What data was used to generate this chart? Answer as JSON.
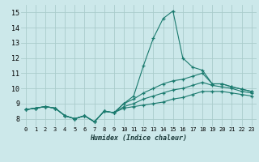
{
  "xlabel": "Humidex (Indice chaleur)",
  "xlim": [
    -0.5,
    23.5
  ],
  "ylim": [
    7.5,
    15.5
  ],
  "xticks": [
    0,
    1,
    2,
    3,
    4,
    5,
    6,
    7,
    8,
    9,
    10,
    11,
    12,
    13,
    14,
    15,
    16,
    17,
    18,
    19,
    20,
    21,
    22,
    23
  ],
  "yticks": [
    8,
    9,
    10,
    11,
    12,
    13,
    14,
    15
  ],
  "background_color": "#cce8ea",
  "grid_color": "#aacccc",
  "line_color": "#1a7a6e",
  "series": [
    {
      "x": [
        0,
        1,
        2,
        3,
        4,
        5,
        6,
        7,
        8,
        9,
        10,
        11,
        12,
        13,
        14,
        15,
        16,
        17,
        18,
        19,
        20,
        21,
        22,
        23
      ],
      "y": [
        8.6,
        8.7,
        8.8,
        8.7,
        8.2,
        8.0,
        8.2,
        7.8,
        8.5,
        8.4,
        9.0,
        9.5,
        11.5,
        13.3,
        14.6,
        15.1,
        12.0,
        11.4,
        11.2,
        10.3,
        10.3,
        10.1,
        9.95,
        9.8
      ]
    },
    {
      "x": [
        0,
        1,
        2,
        3,
        4,
        5,
        6,
        7,
        8,
        9,
        10,
        11,
        12,
        13,
        14,
        15,
        16,
        17,
        18,
        19,
        20,
        21,
        22,
        23
      ],
      "y": [
        8.6,
        8.7,
        8.8,
        8.7,
        8.2,
        8.0,
        8.2,
        7.8,
        8.5,
        8.4,
        9.0,
        9.3,
        9.7,
        10.0,
        10.3,
        10.5,
        10.6,
        10.8,
        11.0,
        10.3,
        10.3,
        10.1,
        9.95,
        9.8
      ]
    },
    {
      "x": [
        0,
        1,
        2,
        3,
        4,
        5,
        6,
        7,
        8,
        9,
        10,
        11,
        12,
        13,
        14,
        15,
        16,
        17,
        18,
        19,
        20,
        21,
        22,
        23
      ],
      "y": [
        8.6,
        8.7,
        8.8,
        8.7,
        8.2,
        8.0,
        8.2,
        7.8,
        8.5,
        8.4,
        8.8,
        9.0,
        9.3,
        9.5,
        9.7,
        9.9,
        10.0,
        10.2,
        10.4,
        10.2,
        10.1,
        10.0,
        9.8,
        9.7
      ]
    },
    {
      "x": [
        0,
        1,
        2,
        3,
        4,
        5,
        6,
        7,
        8,
        9,
        10,
        11,
        12,
        13,
        14,
        15,
        16,
        17,
        18,
        19,
        20,
        21,
        22,
        23
      ],
      "y": [
        8.6,
        8.7,
        8.8,
        8.7,
        8.2,
        8.0,
        8.2,
        7.8,
        8.5,
        8.4,
        8.7,
        8.8,
        8.9,
        9.0,
        9.1,
        9.3,
        9.4,
        9.6,
        9.8,
        9.8,
        9.8,
        9.7,
        9.6,
        9.5
      ]
    }
  ]
}
